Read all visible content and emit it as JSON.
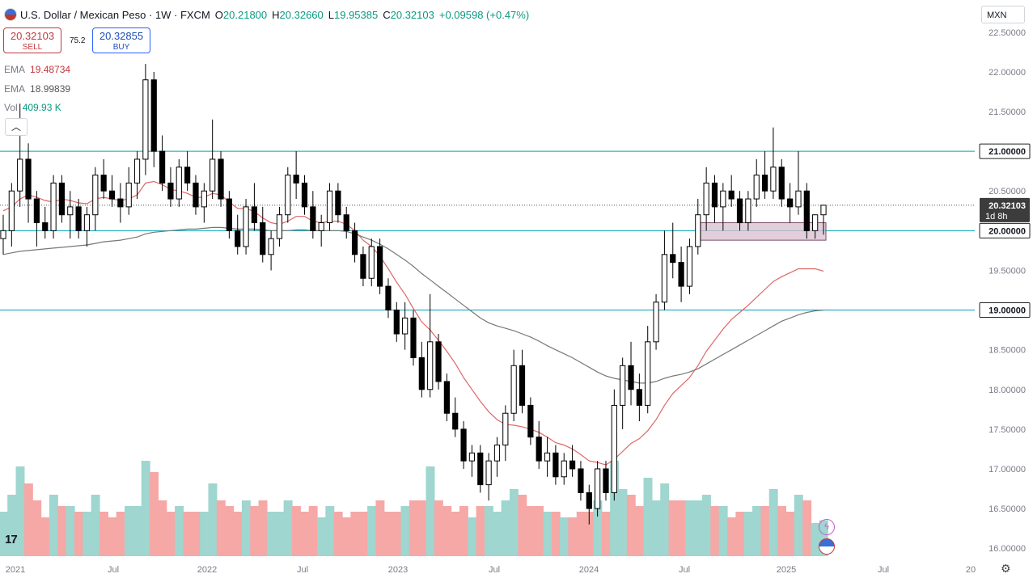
{
  "header": {
    "symbol": "U.S. Dollar / Mexican Peso · 1W · FXCM",
    "open_label": "O",
    "open": "20.21800",
    "high_label": "H",
    "high": "20.32660",
    "low_label": "L",
    "low": "19.95385",
    "close_label": "C",
    "close": "20.32103",
    "change": "+0.09598 (+0.47%)"
  },
  "trade": {
    "sell_price": "20.32103",
    "sell_label": "SELL",
    "buy_price": "20.32855",
    "buy_label": "BUY",
    "spread": "75.2"
  },
  "indicators": {
    "ema1_label": "EMA",
    "ema1_value": "19.48734",
    "ema2_label": "EMA",
    "ema2_value": "18.99839",
    "vol_label": "Vol",
    "vol_value": "409.93 K"
  },
  "currency": "MXN",
  "collapse_glyph": "︿",
  "logo_text": "17",
  "price_tag": {
    "value": "20.32103",
    "countdown": "1d 8h"
  },
  "colors": {
    "up": "#26a69a",
    "down": "#ef5350",
    "ema_fast": "#e06666",
    "ema_slow": "#777777",
    "hline": "#00a3b4",
    "zone_fill": "#d9bfd0",
    "zone_stroke": "#7a4a6a"
  },
  "chart_data": {
    "type": "candlestick",
    "timeframe": "1W",
    "ylim": [
      15.9,
      22.6
    ],
    "y_ticks": [
      "22.50000",
      "22.00000",
      "21.50000",
      "21.00000",
      "20.50000",
      "20.00000",
      "19.50000",
      "19.00000",
      "18.50000",
      "18.00000",
      "17.50000",
      "17.00000",
      "16.50000",
      "16.00000"
    ],
    "x_ticks": [
      "2021",
      "Jul",
      "2022",
      "Jul",
      "2023",
      "Jul",
      "2024",
      "Jul",
      "2025",
      "Jul",
      "20"
    ],
    "horizontal_levels": [
      "21.00000",
      "20.00000",
      "19.00000"
    ],
    "zone": {
      "top": 20.1,
      "bottom": 19.88,
      "from": "2024-07",
      "to": "2025-04"
    },
    "series": [
      {
        "name": "USD/MXN",
        "kind": "candles",
        "points": [
          [
            19.9,
            20.2,
            19.7,
            20.0
          ],
          [
            20.0,
            20.6,
            19.8,
            20.5
          ],
          [
            20.5,
            21.6,
            20.3,
            20.9
          ],
          [
            20.9,
            21.1,
            20.1,
            20.4
          ],
          [
            20.4,
            20.5,
            19.8,
            20.1
          ],
          [
            20.1,
            20.3,
            19.9,
            20.0
          ],
          [
            20.0,
            20.7,
            19.9,
            20.6
          ],
          [
            20.6,
            20.7,
            20.1,
            20.2
          ],
          [
            20.2,
            20.5,
            19.9,
            20.3
          ],
          [
            20.3,
            20.4,
            19.9,
            20.0
          ],
          [
            20.0,
            20.3,
            19.8,
            20.2
          ],
          [
            20.2,
            20.8,
            20.0,
            20.7
          ],
          [
            20.7,
            20.9,
            20.4,
            20.5
          ],
          [
            20.5,
            20.7,
            20.3,
            20.4
          ],
          [
            20.4,
            20.6,
            20.1,
            20.3
          ],
          [
            20.3,
            20.8,
            20.2,
            20.6
          ],
          [
            20.6,
            21.0,
            20.4,
            20.9
          ],
          [
            20.9,
            22.1,
            20.7,
            21.9
          ],
          [
            21.9,
            22.0,
            20.8,
            21.0
          ],
          [
            21.0,
            21.2,
            20.5,
            20.6
          ],
          [
            20.6,
            20.8,
            20.3,
            20.4
          ],
          [
            20.4,
            20.9,
            20.3,
            20.8
          ],
          [
            20.8,
            21.0,
            20.5,
            20.6
          ],
          [
            20.6,
            20.7,
            20.2,
            20.3
          ],
          [
            20.3,
            20.6,
            20.1,
            20.5
          ],
          [
            20.5,
            21.4,
            20.4,
            20.9
          ],
          [
            20.9,
            21.0,
            20.3,
            20.4
          ],
          [
            20.4,
            20.5,
            19.9,
            20.0
          ],
          [
            20.0,
            20.2,
            19.7,
            19.8
          ],
          [
            19.8,
            20.4,
            19.7,
            20.3
          ],
          [
            20.3,
            20.6,
            20.0,
            20.1
          ],
          [
            20.1,
            20.3,
            19.6,
            19.7
          ],
          [
            19.7,
            20.0,
            19.5,
            19.9
          ],
          [
            19.9,
            20.3,
            19.8,
            20.2
          ],
          [
            20.2,
            20.8,
            20.1,
            20.7
          ],
          [
            20.7,
            21.0,
            20.4,
            20.6
          ],
          [
            20.6,
            20.7,
            20.2,
            20.3
          ],
          [
            20.3,
            20.5,
            19.9,
            20.0
          ],
          [
            20.0,
            20.2,
            19.8,
            20.1
          ],
          [
            20.1,
            20.6,
            20.0,
            20.5
          ],
          [
            20.5,
            20.6,
            20.1,
            20.2
          ],
          [
            20.2,
            20.3,
            19.9,
            20.0
          ],
          [
            20.0,
            20.1,
            19.6,
            19.7
          ],
          [
            19.7,
            19.8,
            19.3,
            19.4
          ],
          [
            19.4,
            19.9,
            19.3,
            19.8
          ],
          [
            19.8,
            19.9,
            19.2,
            19.3
          ],
          [
            19.3,
            19.4,
            18.9,
            19.0
          ],
          [
            19.0,
            19.1,
            18.6,
            18.7
          ],
          [
            18.7,
            19.1,
            18.5,
            18.9
          ],
          [
            18.9,
            19.0,
            18.3,
            18.4
          ],
          [
            18.4,
            18.6,
            17.9,
            18.0
          ],
          [
            18.0,
            19.2,
            17.9,
            18.6
          ],
          [
            18.6,
            18.7,
            18.0,
            18.1
          ],
          [
            18.1,
            18.2,
            17.6,
            17.7
          ],
          [
            17.7,
            17.9,
            17.4,
            17.5
          ],
          [
            17.5,
            17.6,
            17.0,
            17.1
          ],
          [
            17.1,
            17.3,
            16.9,
            17.2
          ],
          [
            17.2,
            17.3,
            16.7,
            16.8
          ],
          [
            16.8,
            17.2,
            16.6,
            17.1
          ],
          [
            17.1,
            17.4,
            16.9,
            17.3
          ],
          [
            17.3,
            17.8,
            17.1,
            17.7
          ],
          [
            17.7,
            18.5,
            17.6,
            18.3
          ],
          [
            18.3,
            18.5,
            17.7,
            17.8
          ],
          [
            17.8,
            17.9,
            17.3,
            17.4
          ],
          [
            17.4,
            17.6,
            17.0,
            17.1
          ],
          [
            17.1,
            17.4,
            16.9,
            17.2
          ],
          [
            17.2,
            17.3,
            16.8,
            16.9
          ],
          [
            16.9,
            17.2,
            16.8,
            17.1
          ],
          [
            17.1,
            17.3,
            16.9,
            17.0
          ],
          [
            17.0,
            17.1,
            16.6,
            16.7
          ],
          [
            16.7,
            16.8,
            16.3,
            16.5
          ],
          [
            16.5,
            17.1,
            16.4,
            17.0
          ],
          [
            17.0,
            17.1,
            16.6,
            16.7
          ],
          [
            16.7,
            18.0,
            16.6,
            17.8
          ],
          [
            17.8,
            18.4,
            17.5,
            18.3
          ],
          [
            18.3,
            18.6,
            17.8,
            18.0
          ],
          [
            18.0,
            18.2,
            17.6,
            17.8
          ],
          [
            17.8,
            18.8,
            17.7,
            18.6
          ],
          [
            18.6,
            19.2,
            18.5,
            19.1
          ],
          [
            19.1,
            20.0,
            19.0,
            19.7
          ],
          [
            19.7,
            20.1,
            19.4,
            19.6
          ],
          [
            19.6,
            19.8,
            19.1,
            19.3
          ],
          [
            19.3,
            19.9,
            19.2,
            19.8
          ],
          [
            19.8,
            20.4,
            19.7,
            20.2
          ],
          [
            20.2,
            20.8,
            20.0,
            20.6
          ],
          [
            20.6,
            20.7,
            20.1,
            20.3
          ],
          [
            20.3,
            20.6,
            20.0,
            20.5
          ],
          [
            20.5,
            20.7,
            20.3,
            20.4
          ],
          [
            20.4,
            20.5,
            20.0,
            20.1
          ],
          [
            20.1,
            20.5,
            20.0,
            20.4
          ],
          [
            20.4,
            20.9,
            20.3,
            20.7
          ],
          [
            20.7,
            21.0,
            20.4,
            20.5
          ],
          [
            20.5,
            21.3,
            20.4,
            20.8
          ],
          [
            20.8,
            20.9,
            20.3,
            20.4
          ],
          [
            20.4,
            20.6,
            20.1,
            20.3
          ],
          [
            20.3,
            21.0,
            20.2,
            20.5
          ],
          [
            20.5,
            20.6,
            19.9,
            20.0
          ],
          [
            20.0,
            20.2,
            19.9,
            20.2
          ],
          [
            20.2,
            20.3,
            19.95,
            20.32
          ]
        ]
      },
      {
        "name": "EMA",
        "kind": "line",
        "values": [
          20.25,
          20.3,
          20.4,
          20.45,
          20.42,
          20.38,
          20.36,
          20.4,
          20.38,
          20.35,
          20.34,
          20.4,
          20.42,
          20.4,
          20.38,
          20.4,
          20.45,
          20.6,
          20.62,
          20.58,
          20.52,
          20.5,
          20.47,
          20.42,
          20.42,
          20.47,
          20.45,
          20.36,
          20.28,
          20.28,
          20.24,
          20.16,
          20.1,
          20.08,
          20.12,
          20.18,
          20.18,
          20.12,
          20.1,
          20.12,
          20.12,
          20.08,
          20.0,
          19.88,
          19.8,
          19.68,
          19.52,
          19.35,
          19.2,
          19.02,
          18.85,
          18.75,
          18.62,
          18.48,
          18.33,
          18.15,
          18.0,
          17.85,
          17.72,
          17.62,
          17.56,
          17.55,
          17.53,
          17.5,
          17.46,
          17.4,
          17.33,
          17.3,
          17.25,
          17.18,
          17.1,
          17.08,
          17.05,
          17.12,
          17.22,
          17.32,
          17.38,
          17.48,
          17.62,
          17.8,
          17.95,
          18.05,
          18.15,
          18.3,
          18.48,
          18.62,
          18.76,
          18.88,
          18.97,
          19.06,
          19.16,
          19.26,
          19.36,
          19.42,
          19.47,
          19.52,
          19.52,
          19.52,
          19.49
        ]
      },
      {
        "name": "EMA",
        "kind": "line",
        "values": [
          19.7,
          19.72,
          19.74,
          19.75,
          19.76,
          19.77,
          19.78,
          19.79,
          19.8,
          19.81,
          19.82,
          19.84,
          19.86,
          19.87,
          19.88,
          19.9,
          19.92,
          19.96,
          19.98,
          19.99,
          20.0,
          20.01,
          20.02,
          20.02,
          20.03,
          20.04,
          20.04,
          20.03,
          20.02,
          20.02,
          20.02,
          20.01,
          20.0,
          20.0,
          20.0,
          20.01,
          20.01,
          20.0,
          20.0,
          20.0,
          20.0,
          19.99,
          19.96,
          19.92,
          19.88,
          19.83,
          19.77,
          19.7,
          19.63,
          19.55,
          19.46,
          19.38,
          19.3,
          19.22,
          19.14,
          19.06,
          18.98,
          18.9,
          18.84,
          18.8,
          18.77,
          18.74,
          18.7,
          18.66,
          18.61,
          18.55,
          18.5,
          18.45,
          18.4,
          18.34,
          18.28,
          18.22,
          18.17,
          18.14,
          18.12,
          18.1,
          18.08,
          18.08,
          18.1,
          18.14,
          18.17,
          18.19,
          18.22,
          18.26,
          18.32,
          18.38,
          18.44,
          18.5,
          18.56,
          18.62,
          18.68,
          18.74,
          18.8,
          18.86,
          18.9,
          18.94,
          18.97,
          18.99,
          19.0
        ]
      },
      {
        "name": "Vol",
        "kind": "histogram"
      }
    ]
  }
}
